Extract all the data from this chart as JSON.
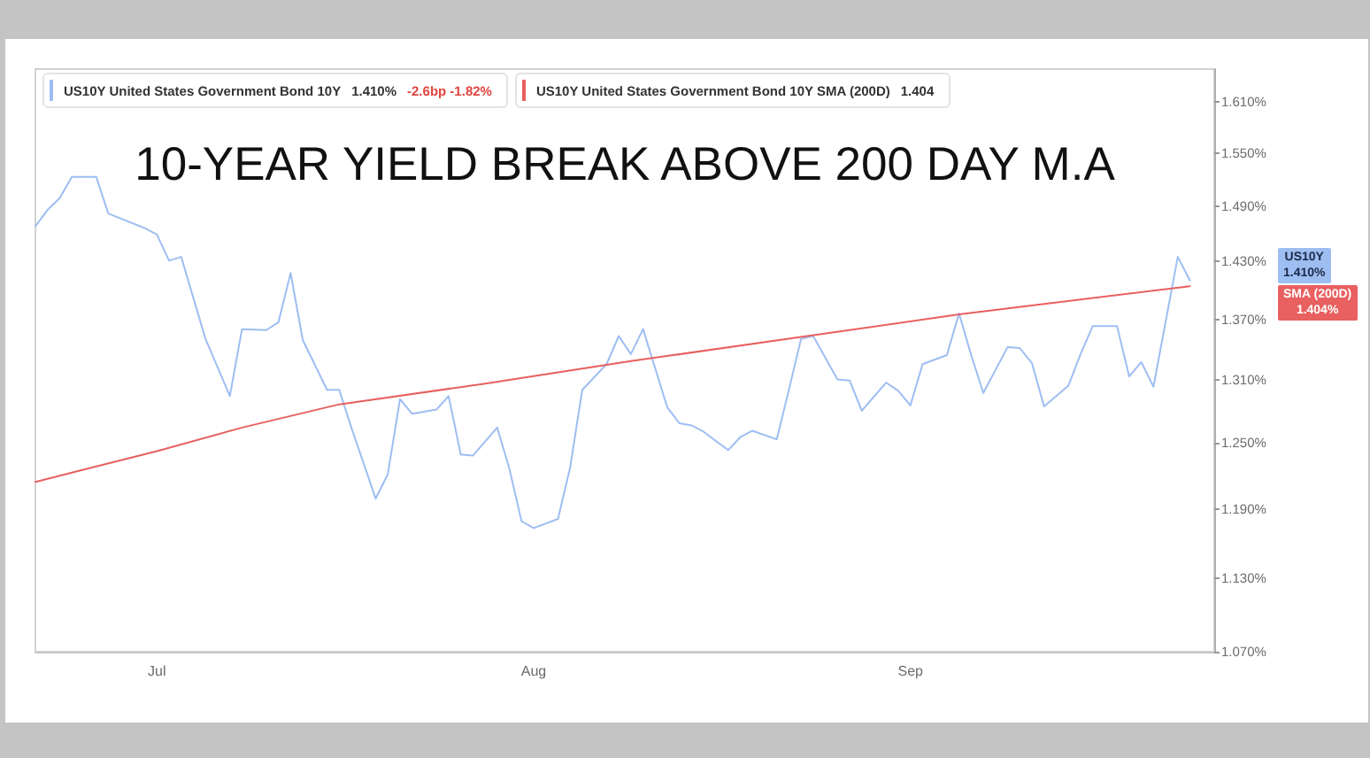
{
  "chart_data": {
    "type": "line",
    "title": "10-YEAR YIELD BREAK ABOVE 200 DAY M.A",
    "series": [
      {
        "name": "US10Y United States Government Bond 10Y",
        "color": "#9ebef2",
        "x": [
          "--06-21",
          "--06-22",
          "--06-23",
          "--06-24",
          "--06-26",
          "--06-27",
          "--06-30",
          "--07-01",
          "--07-02",
          "--07-03",
          "--07-05",
          "--07-07",
          "--07-08",
          "--07-10",
          "--07-11",
          "--07-12",
          "--07-13",
          "--07-15",
          "--07-16",
          "--07-17",
          "--07-19",
          "--07-20",
          "--07-21",
          "--07-22",
          "--07-24",
          "--07-25",
          "--07-26",
          "--07-27",
          "--07-29",
          "--07-30",
          "--07-31",
          "--08-01",
          "--08-03",
          "--08-04",
          "--08-05",
          "--08-07",
          "--08-08",
          "--08-09",
          "--08-10",
          "--08-12",
          "--08-13",
          "--08-14",
          "--08-15",
          "--08-17",
          "--08-18",
          "--08-19",
          "--08-21",
          "--08-22",
          "--08-23",
          "--08-24",
          "--08-26",
          "--08-27",
          "--08-28",
          "--08-30",
          "--08-31",
          "--09-01",
          "--09-02",
          "--09-04",
          "--09-05",
          "--09-06",
          "--09-07",
          "--09-09",
          "--09-10",
          "--09-11",
          "--09-12",
          "--09-14",
          "--09-15",
          "--09-16",
          "--09-18",
          "--09-19",
          "--09-20",
          "--09-21",
          "--09-23",
          "--09-24"
        ],
        "values": [
          1.468,
          1.486,
          1.499,
          1.523,
          1.523,
          1.482,
          1.466,
          1.459,
          1.431,
          1.435,
          1.35,
          1.294,
          1.36,
          1.359,
          1.367,
          1.418,
          1.349,
          1.3,
          1.3,
          1.264,
          1.199,
          1.221,
          1.291,
          1.277,
          1.281,
          1.294,
          1.239,
          1.238,
          1.264,
          1.226,
          1.179,
          1.173,
          1.181,
          1.227,
          1.3,
          1.325,
          1.353,
          1.335,
          1.36,
          1.283,
          1.268,
          1.266,
          1.26,
          1.243,
          1.255,
          1.261,
          1.253,
          1.3,
          1.35,
          1.353,
          1.31,
          1.309,
          1.28,
          1.307,
          1.299,
          1.285,
          1.325,
          1.334,
          1.376,
          1.334,
          1.297,
          1.342,
          1.341,
          1.326,
          1.284,
          1.304,
          1.335,
          1.363,
          1.363,
          1.313,
          1.327,
          1.303,
          1.435,
          1.41
        ]
      },
      {
        "name": "US10Y United States Government Bond 10Y SMA (200D)",
        "color": "#e8605f",
        "x": [
          "--06-21",
          "--06-26",
          "--07-01",
          "--07-08",
          "--07-16",
          "--07-28",
          "--08-09",
          "--08-23",
          "--09-05",
          "--09-24"
        ],
        "values": [
          1.214,
          1.228,
          1.242,
          1.264,
          1.286,
          1.306,
          1.328,
          1.352,
          1.375,
          1.404
        ]
      }
    ],
    "xlim": [
      "--06-21",
      "--09-26"
    ],
    "xticks": [
      {
        "value": "--07-01",
        "label": "Jul"
      },
      {
        "value": "--08-01",
        "label": "Aug"
      },
      {
        "value": "--09-01",
        "label": "Sep"
      }
    ],
    "ylim": [
      1.07,
      1.65
    ],
    "yticks": [
      {
        "value": 1.07,
        "label": "1.070%"
      },
      {
        "value": 1.13,
        "label": "1.130%"
      },
      {
        "value": 1.19,
        "label": "1.190%"
      },
      {
        "value": 1.25,
        "label": "1.250%"
      },
      {
        "value": 1.31,
        "label": "1.310%"
      },
      {
        "value": 1.37,
        "label": "1.370%"
      },
      {
        "value": 1.43,
        "label": "1.430%"
      },
      {
        "value": 1.49,
        "label": "1.490%"
      },
      {
        "value": 1.55,
        "label": "1.550%"
      },
      {
        "value": 1.61,
        "label": "1.610%"
      }
    ],
    "log": true,
    "grid": false,
    "legend": "top left",
    "annotations": [
      "1.410%",
      "-2.6bp -1.82%",
      "1.404",
      "US10Y\n1.410%",
      "SMA (200D)\n1.404%"
    ]
  }
}
